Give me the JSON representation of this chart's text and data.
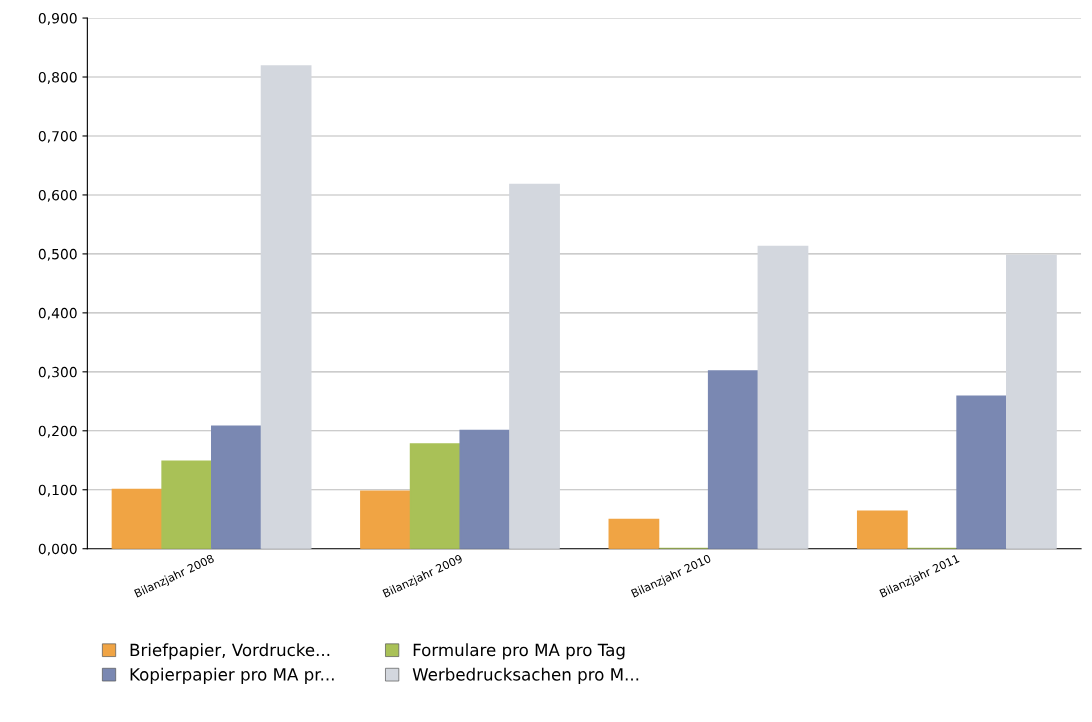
{
  "chart_data": {
    "type": "bar",
    "categories": [
      "Bilanzjahr 2008",
      "Bilanzjahr 2009",
      "Bilanzjahr 2010",
      "Bilanzjahr 2011"
    ],
    "series": [
      {
        "name": "Briefpapier, Vordrucke...",
        "color": "#f0a444",
        "values": [
          0.1,
          0.097,
          0.049,
          0.063
        ]
      },
      {
        "name": "Formulare pro MA pro Tag",
        "color": "#a9c157",
        "values": [
          0.148,
          0.177,
          0.0,
          0.0
        ]
      },
      {
        "name": "Kopierpapier pro MA pr...",
        "color": "#7a88b2",
        "values": [
          0.207,
          0.2,
          0.301,
          0.258
        ]
      },
      {
        "name": "Werbedrucksachen pro M...",
        "color": "#d3d7de",
        "values": [
          0.818,
          0.617,
          0.512,
          0.497
        ]
      }
    ],
    "ylim": [
      0,
      0.9
    ],
    "yticks": [
      {
        "value": 0,
        "label": "0,000"
      },
      {
        "value": 0.1,
        "label": "0,100"
      },
      {
        "value": 0.2,
        "label": "0,200"
      },
      {
        "value": 0.3,
        "label": "0,300"
      },
      {
        "value": 0.4,
        "label": "0,400"
      },
      {
        "value": 0.5,
        "label": "0,500"
      },
      {
        "value": 0.6,
        "label": "0,600"
      },
      {
        "value": 0.7,
        "label": "0,700"
      },
      {
        "value": 0.8,
        "label": "0,800"
      },
      {
        "value": 0.9,
        "label": "0,900"
      }
    ],
    "grid": "y",
    "legend": "bottom"
  }
}
